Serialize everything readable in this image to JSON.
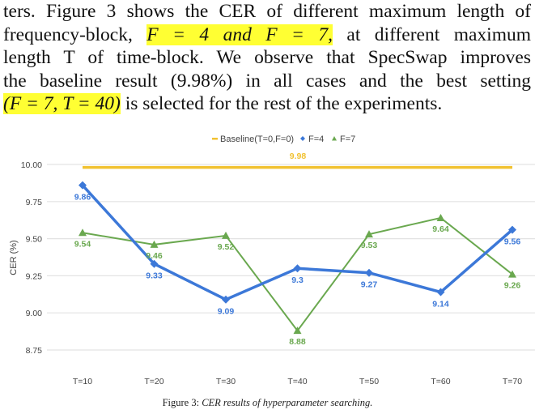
{
  "paragraph": {
    "line1": "ters. Figure 3 shows the CER of different maximum length of",
    "line2_a": "frequency-block, ",
    "line2_hl": "F = 4 and F = 7,",
    "line2_b": " at different maximum",
    "line3": "length T of time-block. We observe that SpecSwap improves",
    "line4": "the baseline result (9.98%) in all cases and the best setting",
    "line5_hl": "(F = 7, T = 40)",
    "line5_b": " is selected for the rest of the experiments."
  },
  "caption": {
    "label": "Figure 3: ",
    "text": "CER results of hyperparameter searching."
  },
  "chart_data": {
    "type": "line",
    "title": "",
    "xlabel": "",
    "ylabel": "CER (%)",
    "categories": [
      "T=10",
      "T=20",
      "T=30",
      "T=40",
      "T=50",
      "T=60",
      "T=70"
    ],
    "ylim": [
      8.75,
      10.0
    ],
    "yticks": [
      "10.00",
      "9.75",
      "9.50",
      "9.25",
      "9.00",
      "8.75"
    ],
    "ytick_values": [
      10.0,
      9.75,
      9.5,
      9.25,
      9.0,
      8.75
    ],
    "grid": true,
    "legend_position": "top",
    "series": [
      {
        "name": "Baseline(T=0,F=0)",
        "color": "#f1c232",
        "marker": "line",
        "value": 9.98,
        "label": "9.98"
      },
      {
        "name": "F=4",
        "color": "#3c78d8",
        "marker": "diamond",
        "values": [
          9.86,
          9.33,
          9.09,
          9.3,
          9.27,
          9.14,
          9.56
        ],
        "labels": [
          "9.86",
          "9.33",
          "9.09",
          "9.3",
          "9.27",
          "9.14",
          "9.56"
        ]
      },
      {
        "name": "F=7",
        "color": "#6aa84f",
        "marker": "triangle",
        "values": [
          9.54,
          9.46,
          9.52,
          8.88,
          9.53,
          9.64,
          9.26
        ],
        "labels": [
          "9.54",
          "9.46",
          "9.52",
          "8.88",
          "9.53",
          "9.64",
          "9.26"
        ]
      }
    ]
  }
}
